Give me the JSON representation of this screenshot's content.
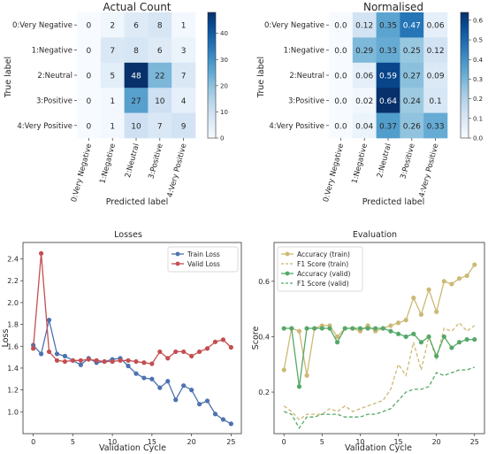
{
  "chart_data": [
    {
      "type": "heatmap",
      "title": "Actual Count",
      "xlabel": "Predicted label",
      "ylabel": "True label",
      "x_tick_labels": [
        "0:Very Negative",
        "1:Negative",
        "2:Neutral",
        "3:Positive",
        "4:Very Positive"
      ],
      "y_tick_labels": [
        "0:Very Negative",
        "1:Negative",
        "2:Neutral",
        "3:Positive",
        "4:Very Positive"
      ],
      "cell_text": [
        [
          "0",
          "2",
          "6",
          "8",
          "1"
        ],
        [
          "0",
          "7",
          "8",
          "6",
          "3"
        ],
        [
          "0",
          "5",
          "48",
          "22",
          "7"
        ],
        [
          "0",
          "1",
          "27",
          "10",
          "4"
        ],
        [
          "0",
          "1",
          "10",
          "7",
          "9"
        ]
      ],
      "values": [
        [
          0,
          2,
          6,
          8,
          1
        ],
        [
          0,
          7,
          8,
          6,
          3
        ],
        [
          0,
          5,
          48,
          22,
          7
        ],
        [
          0,
          1,
          27,
          10,
          4
        ],
        [
          0,
          1,
          10,
          7,
          9
        ]
      ],
      "vmin": 0,
      "vmax": 48,
      "colorbar_ticks": [
        "0",
        "10",
        "20",
        "30",
        "40"
      ],
      "colorbar_values": [
        0,
        10,
        20,
        30,
        40
      ],
      "cmap": "Blues"
    },
    {
      "type": "heatmap",
      "title": "Normalised",
      "xlabel": "Predicted label",
      "ylabel": "True label",
      "x_tick_labels": [
        "0:Very Negative",
        "1:Negative",
        "2:Neutral",
        "3:Positive",
        "4:Very Positive"
      ],
      "y_tick_labels": [
        "0:Very Negative",
        "1:Negative",
        "2:Neutral",
        "3:Positive",
        "4:Very Positive"
      ],
      "cell_text": [
        [
          "0.0",
          "0.12",
          "0.35",
          "0.47",
          "0.06"
        ],
        [
          "0.0",
          "0.29",
          "0.33",
          "0.25",
          "0.12"
        ],
        [
          "0.0",
          "0.06",
          "0.59",
          "0.27",
          "0.09"
        ],
        [
          "0.0",
          "0.02",
          "0.64",
          "0.24",
          "0.1"
        ],
        [
          "0.0",
          "0.04",
          "0.37",
          "0.26",
          "0.33"
        ]
      ],
      "values": [
        [
          0,
          0.12,
          0.35,
          0.47,
          0.06
        ],
        [
          0,
          0.29,
          0.33,
          0.25,
          0.12
        ],
        [
          0,
          0.06,
          0.59,
          0.27,
          0.09
        ],
        [
          0,
          0.02,
          0.64,
          0.24,
          0.1
        ],
        [
          0,
          0.04,
          0.37,
          0.26,
          0.33
        ]
      ],
      "vmin": 0,
      "vmax": 0.64,
      "colorbar_ticks": [
        "0.0",
        "0.1",
        "0.2",
        "0.3",
        "0.4",
        "0.5",
        "0.6"
      ],
      "colorbar_values": [
        0,
        0.1,
        0.2,
        0.3,
        0.4,
        0.5,
        0.6
      ],
      "cmap": "Blues"
    },
    {
      "type": "line",
      "title": "Losses",
      "xlabel": "Validation Cycle",
      "ylabel": "Loss",
      "xlim": [
        -1.3,
        26.3
      ],
      "ylim": [
        0.8,
        2.55
      ],
      "x_ticks": [
        0,
        5,
        10,
        15,
        20,
        25
      ],
      "x_tick_labels": [
        "0",
        "5",
        "10",
        "15",
        "20",
        "25"
      ],
      "y_ticks": [
        1.0,
        1.2,
        1.4,
        1.6,
        1.8,
        2.0,
        2.2,
        2.4
      ],
      "y_tick_labels": [
        "1.0",
        "1.2",
        "1.4",
        "1.6",
        "1.8",
        "2.0",
        "2.2",
        "2.4"
      ],
      "grid": false,
      "legend_position": "top-right",
      "x": [
        0,
        1,
        2,
        3,
        4,
        5,
        6,
        7,
        8,
        9,
        10,
        11,
        12,
        13,
        14,
        15,
        16,
        17,
        18,
        19,
        20,
        21,
        22,
        23,
        24,
        25
      ],
      "series": [
        {
          "name": "Train Loss",
          "color": "#4c72b0",
          "style": "solid-marker",
          "values": [
            1.61,
            1.53,
            1.84,
            1.53,
            1.51,
            1.47,
            1.43,
            1.49,
            1.45,
            1.46,
            1.48,
            1.49,
            1.42,
            1.35,
            1.31,
            1.3,
            1.22,
            1.28,
            1.11,
            1.24,
            1.2,
            1.07,
            1.1,
            0.98,
            0.93,
            0.89
          ]
        },
        {
          "name": "Valid Loss",
          "color": "#c44e52",
          "style": "solid-marker",
          "values": [
            1.58,
            2.45,
            1.55,
            1.47,
            1.46,
            1.47,
            1.47,
            1.48,
            1.47,
            1.46,
            1.46,
            1.47,
            1.47,
            1.46,
            1.45,
            1.44,
            1.55,
            1.49,
            1.55,
            1.55,
            1.51,
            1.55,
            1.58,
            1.64,
            1.66,
            1.59
          ]
        }
      ]
    },
    {
      "type": "line",
      "title": "Evaluation",
      "xlabel": "Validation Cycle",
      "ylabel": "Score",
      "xlim": [
        -1.3,
        26.3
      ],
      "ylim": [
        0.05,
        0.74
      ],
      "x_ticks": [
        0,
        5,
        10,
        15,
        20,
        25
      ],
      "x_tick_labels": [
        "0",
        "5",
        "10",
        "15",
        "20",
        "25"
      ],
      "y_ticks": [
        0.2,
        0.4,
        0.6
      ],
      "y_tick_labels": [
        "0.2",
        "0.4",
        "0.6"
      ],
      "grid": false,
      "legend_position": "top-left",
      "x": [
        0,
        1,
        2,
        3,
        4,
        5,
        6,
        7,
        8,
        9,
        10,
        11,
        12,
        13,
        14,
        15,
        16,
        17,
        18,
        19,
        20,
        21,
        22,
        23,
        24,
        25
      ],
      "series": [
        {
          "name": "Accuracy (train)",
          "color": "#ccb974",
          "style": "solid-marker",
          "values": [
            0.28,
            0.43,
            0.42,
            0.26,
            0.43,
            0.44,
            0.44,
            0.4,
            0.43,
            0.43,
            0.42,
            0.44,
            0.42,
            0.43,
            0.44,
            0.45,
            0.46,
            0.54,
            0.48,
            0.57,
            0.49,
            0.6,
            0.59,
            0.61,
            0.62,
            0.66
          ]
        },
        {
          "name": "F1 Score (train)",
          "color": "#ccb974",
          "style": "dashed",
          "values": [
            0.15,
            0.13,
            0.1,
            0.12,
            0.12,
            0.12,
            0.14,
            0.13,
            0.15,
            0.13,
            0.14,
            0.15,
            0.16,
            0.17,
            0.21,
            0.3,
            0.26,
            0.38,
            0.28,
            0.4,
            0.32,
            0.43,
            0.42,
            0.45,
            0.42,
            0.44
          ]
        },
        {
          "name": "Accuracy (valid)",
          "color": "#55a868",
          "style": "solid-marker",
          "values": [
            0.43,
            0.43,
            0.22,
            0.43,
            0.43,
            0.43,
            0.43,
            0.38,
            0.43,
            0.43,
            0.43,
            0.43,
            0.43,
            0.43,
            0.42,
            0.41,
            0.4,
            0.41,
            0.38,
            0.4,
            0.33,
            0.4,
            0.36,
            0.38,
            0.39,
            0.39
          ]
        },
        {
          "name": "F1 Score (valid)",
          "color": "#55a868",
          "style": "dashed",
          "values": [
            0.13,
            0.12,
            0.07,
            0.11,
            0.11,
            0.12,
            0.12,
            0.12,
            0.11,
            0.11,
            0.11,
            0.12,
            0.12,
            0.13,
            0.14,
            0.17,
            0.2,
            0.21,
            0.21,
            0.22,
            0.27,
            0.26,
            0.27,
            0.28,
            0.28,
            0.29
          ]
        }
      ]
    }
  ]
}
